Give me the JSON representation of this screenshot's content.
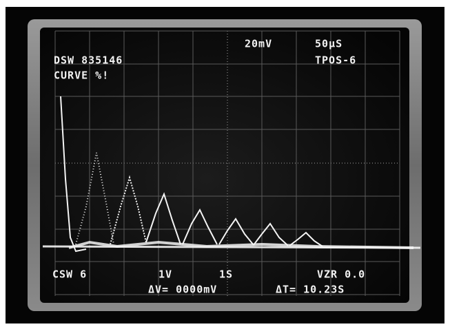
{
  "screen": {
    "top_left_line1": "DSW 835146",
    "top_left_line2": "CURVE %!",
    "volts_per_div": "20mV",
    "time_per_div": "50μS",
    "trigger_position": "TPOS-6",
    "bottom_left": "CSW 6",
    "bottom_volts": "1V",
    "bottom_seconds": "1S",
    "bottom_right": "VZR 0.0",
    "delta_v": "ΔV= 0000mV",
    "delta_t": "ΔT= 10.23S"
  }
}
